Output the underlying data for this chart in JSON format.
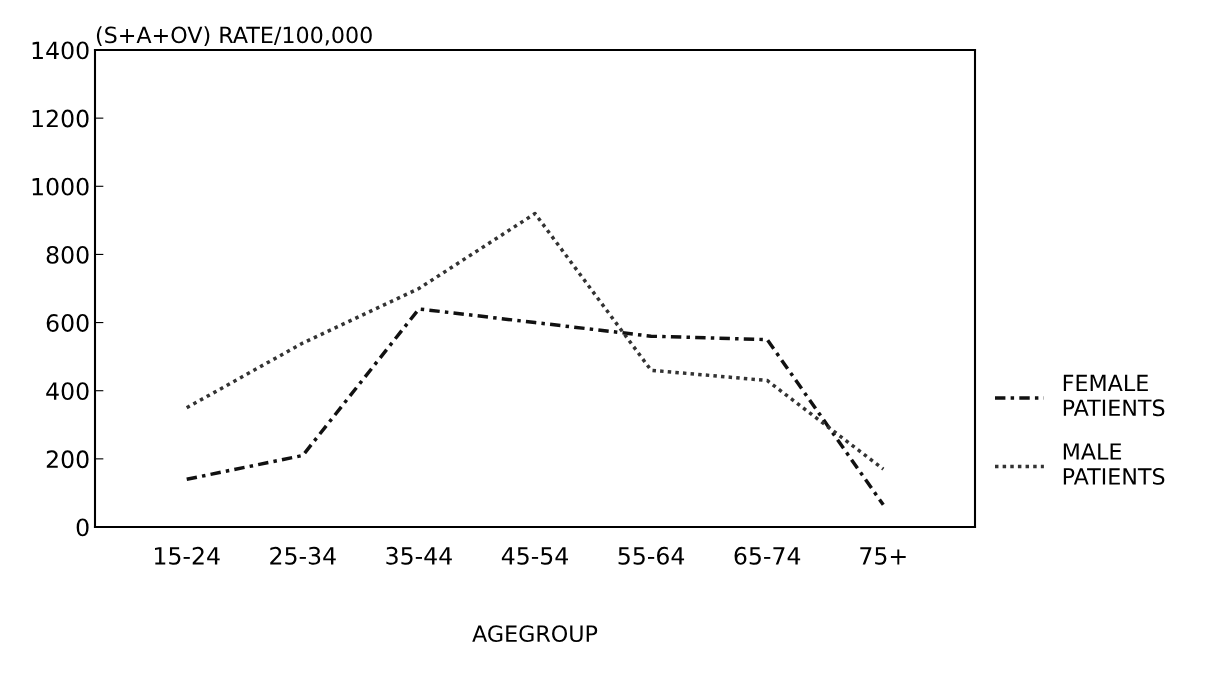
{
  "chart_data": {
    "type": "line",
    "ylabel": "(S+A+OV) RATE/100,000",
    "xlabel": "AGEGROUP",
    "categories": [
      "15-24",
      "25-34",
      "35-44",
      "45-54",
      "55-64",
      "65-74",
      "75+"
    ],
    "series": [
      {
        "name": "FEMALE\nPATIENTS",
        "color": "#111111",
        "line_style": "dashed",
        "values": [
          140,
          210,
          640,
          600,
          560,
          550,
          65
        ]
      },
      {
        "name": "MALE\nPATIENTS",
        "color": "#333333",
        "line_style": "dotted",
        "values": [
          350,
          540,
          700,
          920,
          460,
          430,
          170
        ]
      }
    ],
    "ylim": [
      0,
      1400
    ],
    "yticks": [
      0,
      200,
      400,
      600,
      800,
      1000,
      1200,
      1400
    ],
    "grid": false,
    "legend": "right",
    "marker": "none"
  }
}
